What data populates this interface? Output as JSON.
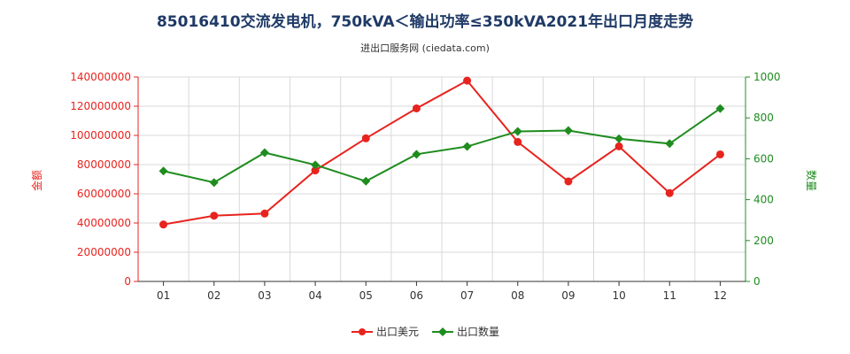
{
  "header": {
    "title": "85016410交流发电机，750kVA＜输出功率≤350kVA2021年出口月度走势",
    "subtitle": "进出口服务网 (ciedata.com)"
  },
  "colors": {
    "amount": "#e8231e",
    "quantity": "#1e8c1e",
    "grid": "#d9d9d9",
    "axis": "#333333"
  },
  "chart_data": {
    "type": "line",
    "categories": [
      "01",
      "02",
      "03",
      "04",
      "05",
      "06",
      "07",
      "08",
      "09",
      "10",
      "11",
      "12"
    ],
    "y_left": {
      "label": "金额",
      "min": 0,
      "max": 140000000,
      "ticks": [
        "0",
        "20000000",
        "40000000",
        "60000000",
        "80000000",
        "100000000",
        "120000000",
        "140000000"
      ]
    },
    "y_right": {
      "label": "数量",
      "min": 0,
      "max": 1000,
      "ticks": [
        "0",
        "200",
        "400",
        "600",
        "800",
        "1000"
      ]
    },
    "series": [
      {
        "name": "出口美元",
        "axis": "left",
        "values": [
          39000000,
          45000000,
          46500000,
          76000000,
          98000000,
          118500000,
          137500000,
          95500000,
          68500000,
          92500000,
          60500000,
          87000000
        ]
      },
      {
        "name": "出口数量",
        "axis": "right",
        "values": [
          540,
          484,
          630,
          570,
          490,
          622,
          660,
          734,
          738,
          698,
          674,
          846
        ]
      }
    ],
    "grid": true,
    "legend": "bottom-center"
  }
}
